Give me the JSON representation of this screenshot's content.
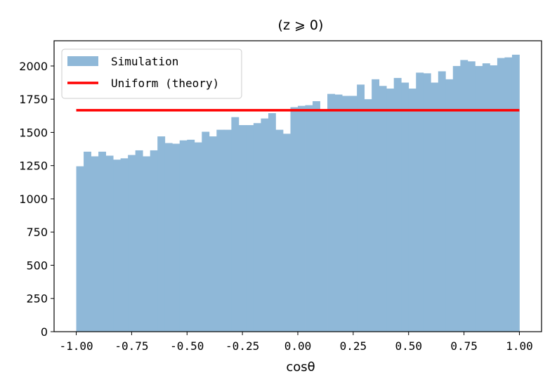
{
  "chart_data": {
    "type": "bar",
    "title": "(z ⩾ 0)",
    "xlabel": "cosθ",
    "ylabel": "",
    "xlim": [
      -1.1,
      1.1
    ],
    "ylim": [
      0,
      2190
    ],
    "xticks": [
      -1.0,
      -0.75,
      -0.5,
      -0.25,
      0.0,
      0.25,
      0.5,
      0.75,
      1.0
    ],
    "xtick_labels": [
      "-1.00",
      "-0.75",
      "-0.50",
      "-0.25",
      "0.00",
      "0.25",
      "0.50",
      "0.75",
      "1.00"
    ],
    "yticks": [
      0,
      250,
      500,
      750,
      1000,
      1250,
      1500,
      1750,
      2000
    ],
    "ytick_labels": [
      "0",
      "250",
      "500",
      "750",
      "1000",
      "1250",
      "1500",
      "1750",
      "2000"
    ],
    "legend_position": "upper-left",
    "series": [
      {
        "name": "Simulation",
        "kind": "histogram",
        "color": "#8fb8d8",
        "bin_range": [
          -1.0,
          1.0
        ],
        "bin_count": 60,
        "values": [
          1245,
          1355,
          1320,
          1355,
          1325,
          1295,
          1305,
          1330,
          1365,
          1320,
          1365,
          1470,
          1420,
          1415,
          1440,
          1445,
          1425,
          1505,
          1470,
          1520,
          1520,
          1615,
          1555,
          1555,
          1570,
          1605,
          1645,
          1520,
          1490,
          1690,
          1700,
          1705,
          1735,
          1670,
          1790,
          1785,
          1775,
          1775,
          1860,
          1750,
          1900,
          1850,
          1830,
          1910,
          1875,
          1830,
          1950,
          1945,
          1875,
          1960,
          1900,
          2000,
          2045,
          2035,
          2000,
          2020,
          2005,
          2060,
          2065,
          2085
        ]
      },
      {
        "name": "Uniform (theory)",
        "kind": "line",
        "color": "#ff0000",
        "x": [
          -1.0,
          1.0
        ],
        "y": [
          1667,
          1667
        ]
      }
    ]
  }
}
